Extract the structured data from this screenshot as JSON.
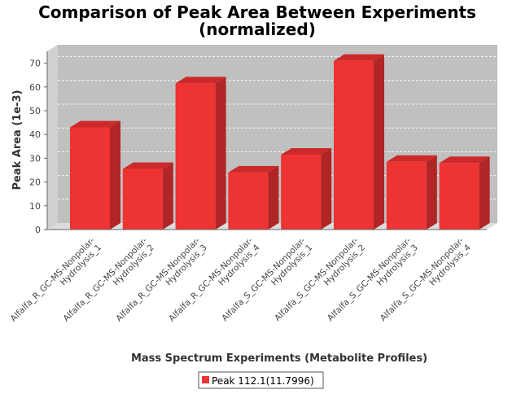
{
  "chart_data": {
    "type": "bar",
    "title": "Comparison of Peak Area Between Experiments",
    "subtitle": "(normalized)",
    "xlabel": "Mass Spectrum Experiments (Metabolite Profiles)",
    "ylabel": "Peak Area (1e-3)",
    "ylim": [
      0,
      75
    ],
    "yticks": [
      0,
      10,
      20,
      30,
      40,
      50,
      60,
      70
    ],
    "grid": true,
    "legend_position": "bottom",
    "categories": [
      [
        "Alfalfa_R_GC-MS-Nonpolar-",
        "Hydrolysis_1"
      ],
      [
        "Alfalfa_R_GC-MS-Nonpolar-",
        "Hydrolysis_2"
      ],
      [
        "Alfalfa_R_GC-MS-Nonpolar-",
        "Hydrolysis_3"
      ],
      [
        "Alfalfa_R_GC-MS-Nonpolar-",
        "Hydrolysis_4"
      ],
      [
        "Alfalfa_S_GC-MS-Nonpolar-",
        "Hydrolysis_1"
      ],
      [
        "Alfalfa_S_GC-MS-Nonpolar-",
        "Hydrolysis_2"
      ],
      [
        "Alfalfa_S_GC-MS-Nonpolar-",
        "Hydrolysis_3"
      ],
      [
        "Alfalfa_S_GC-MS-Nonpolar-",
        "Hydrolysis_4"
      ]
    ],
    "series": [
      {
        "name": "Peak 112.1(11.7996)",
        "color": "#ee3333",
        "values": [
          43,
          25.5,
          61.5,
          24,
          31.5,
          71,
          28.5,
          28
        ]
      }
    ]
  },
  "colors": {
    "plot_background": "#c0c0c0",
    "bar_front": "#ee3333",
    "bar_side": "#b02525",
    "bar_top": "#cc2a2a"
  }
}
